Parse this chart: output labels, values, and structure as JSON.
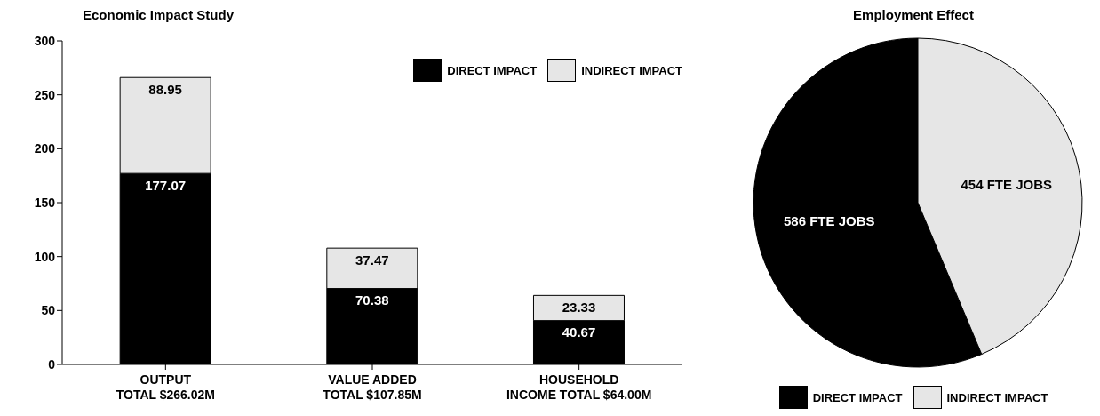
{
  "chart_data": [
    {
      "type": "bar",
      "title": "Economic Impact Study",
      "stacked": true,
      "categories": [
        "OUTPUT\nTOTAL $266.02M",
        "VALUE ADDED\nTOTAL $107.85M",
        "HOUSEHOLD\nINCOME TOTAL $64.00M"
      ],
      "series": [
        {
          "name": "DIRECT IMPACT",
          "color": "#000000",
          "values": [
            177.07,
            70.38,
            40.67
          ]
        },
        {
          "name": "INDIRECT IMPACT",
          "color": "#e6e6e6",
          "values": [
            88.95,
            37.47,
            23.33
          ]
        }
      ],
      "ylim": [
        0,
        300
      ],
      "yticks": [
        0,
        50,
        100,
        150,
        200,
        250,
        300
      ],
      "data_labels": true,
      "legend": "top right",
      "grid": false
    },
    {
      "type": "pie",
      "title": "Employment Effect",
      "categories": [
        "DIRECT IMPACT",
        "INDIRECT IMPACT"
      ],
      "values": [
        586,
        454
      ],
      "colors": [
        "#000000",
        "#e6e6e6"
      ],
      "value_labels": [
        "586 FTE JOBS",
        "454 FTE JOBS"
      ],
      "legend": "bottom"
    }
  ]
}
